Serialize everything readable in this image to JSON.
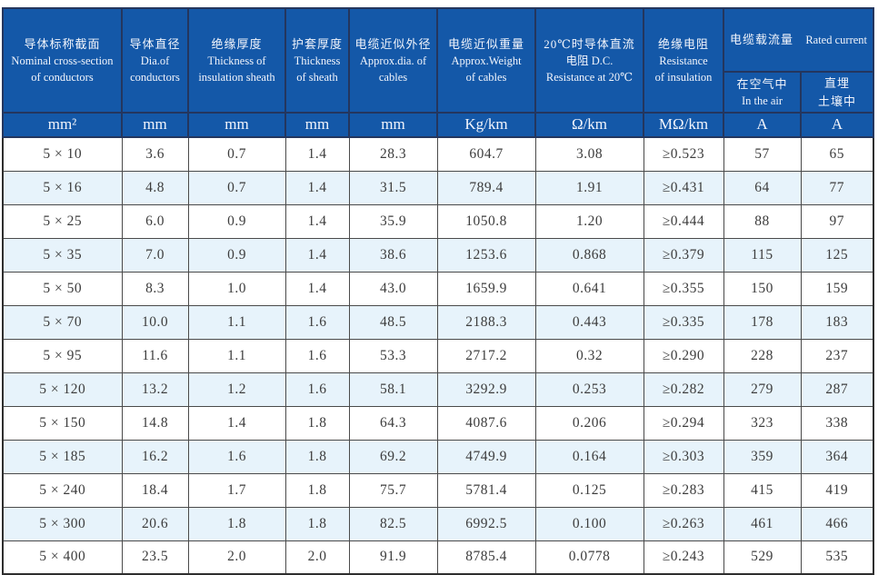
{
  "table": {
    "group_header": {
      "zh": "电缆载流量",
      "en": "Rated current"
    },
    "columns": [
      {
        "lines": [
          "导体标称截面",
          "Nominal cross-section",
          "of conductors"
        ],
        "unit": "mm²"
      },
      {
        "lines": [
          "导体直径",
          "Dia.of",
          "conductors"
        ],
        "unit": "mm"
      },
      {
        "lines": [
          "绝缘厚度",
          "Thickness of",
          "insulation sheath"
        ],
        "unit": "mm"
      },
      {
        "lines": [
          "护套厚度",
          "Thickness",
          "of sheath"
        ],
        "unit": "mm"
      },
      {
        "lines": [
          "电缆近似外径",
          "Approx.dia. of",
          "cables"
        ],
        "unit": "mm"
      },
      {
        "lines": [
          "电缆近似重量",
          "Approx.Weight",
          "of cables"
        ],
        "unit": "Kg/km"
      },
      {
        "lines": [
          "20℃时导体直流",
          "电阻 D.C.",
          "Resistance at 20℃"
        ],
        "unit": "Ω/km"
      },
      {
        "lines": [
          "绝缘电阻",
          "Resistance",
          "of insulation"
        ],
        "unit": "MΩ/km"
      },
      {
        "lines": [
          "在空气中",
          "In the air"
        ],
        "unit": "A"
      },
      {
        "lines": [
          "直埋",
          "土壤中"
        ],
        "unit": "A"
      }
    ],
    "rows": [
      [
        "5 × 10",
        "3.6",
        "0.7",
        "1.4",
        "28.3",
        "604.7",
        "3.08",
        "≥0.523",
        "57",
        "65"
      ],
      [
        "5 × 16",
        "4.8",
        "0.7",
        "1.4",
        "31.5",
        "789.4",
        "1.91",
        "≥0.431",
        "64",
        "77"
      ],
      [
        "5 × 25",
        "6.0",
        "0.9",
        "1.4",
        "35.9",
        "1050.8",
        "1.20",
        "≥0.444",
        "88",
        "97"
      ],
      [
        "5 × 35",
        "7.0",
        "0.9",
        "1.4",
        "38.6",
        "1253.6",
        "0.868",
        "≥0.379",
        "115",
        "125"
      ],
      [
        "5 × 50",
        "8.3",
        "1.0",
        "1.4",
        "43.0",
        "1659.9",
        "0.641",
        "≥0.355",
        "150",
        "159"
      ],
      [
        "5 × 70",
        "10.0",
        "1.1",
        "1.6",
        "48.5",
        "2188.3",
        "0.443",
        "≥0.335",
        "178",
        "183"
      ],
      [
        "5 × 95",
        "11.6",
        "1.1",
        "1.6",
        "53.3",
        "2717.2",
        "0.32",
        "≥0.290",
        "228",
        "237"
      ],
      [
        "5 × 120",
        "13.2",
        "1.2",
        "1.6",
        "58.1",
        "3292.9",
        "0.253",
        "≥0.282",
        "279",
        "287"
      ],
      [
        "5 × 150",
        "14.8",
        "1.4",
        "1.8",
        "64.3",
        "4087.6",
        "0.206",
        "≥0.294",
        "323",
        "338"
      ],
      [
        "5 × 185",
        "16.2",
        "1.6",
        "1.8",
        "69.2",
        "4749.9",
        "0.164",
        "≥0.303",
        "359",
        "364"
      ],
      [
        "5 × 240",
        "18.4",
        "1.7",
        "1.8",
        "75.7",
        "5781.4",
        "0.125",
        "≥0.283",
        "415",
        "419"
      ],
      [
        "5 × 300",
        "20.6",
        "1.8",
        "1.8",
        "82.5",
        "6992.5",
        "0.100",
        "≥0.263",
        "461",
        "466"
      ],
      [
        "5 × 400",
        "23.5",
        "2.0",
        "2.0",
        "91.9",
        "8785.4",
        "0.0778",
        "≥0.243",
        "529",
        "535"
      ]
    ]
  },
  "colors": {
    "header_bg": "#1458a8",
    "header_text": "#f2f5fc",
    "zebra_row_bg": "#e7f3fb",
    "grid_line": "#4a4a4a",
    "body_text": "#3c3c3c"
  }
}
